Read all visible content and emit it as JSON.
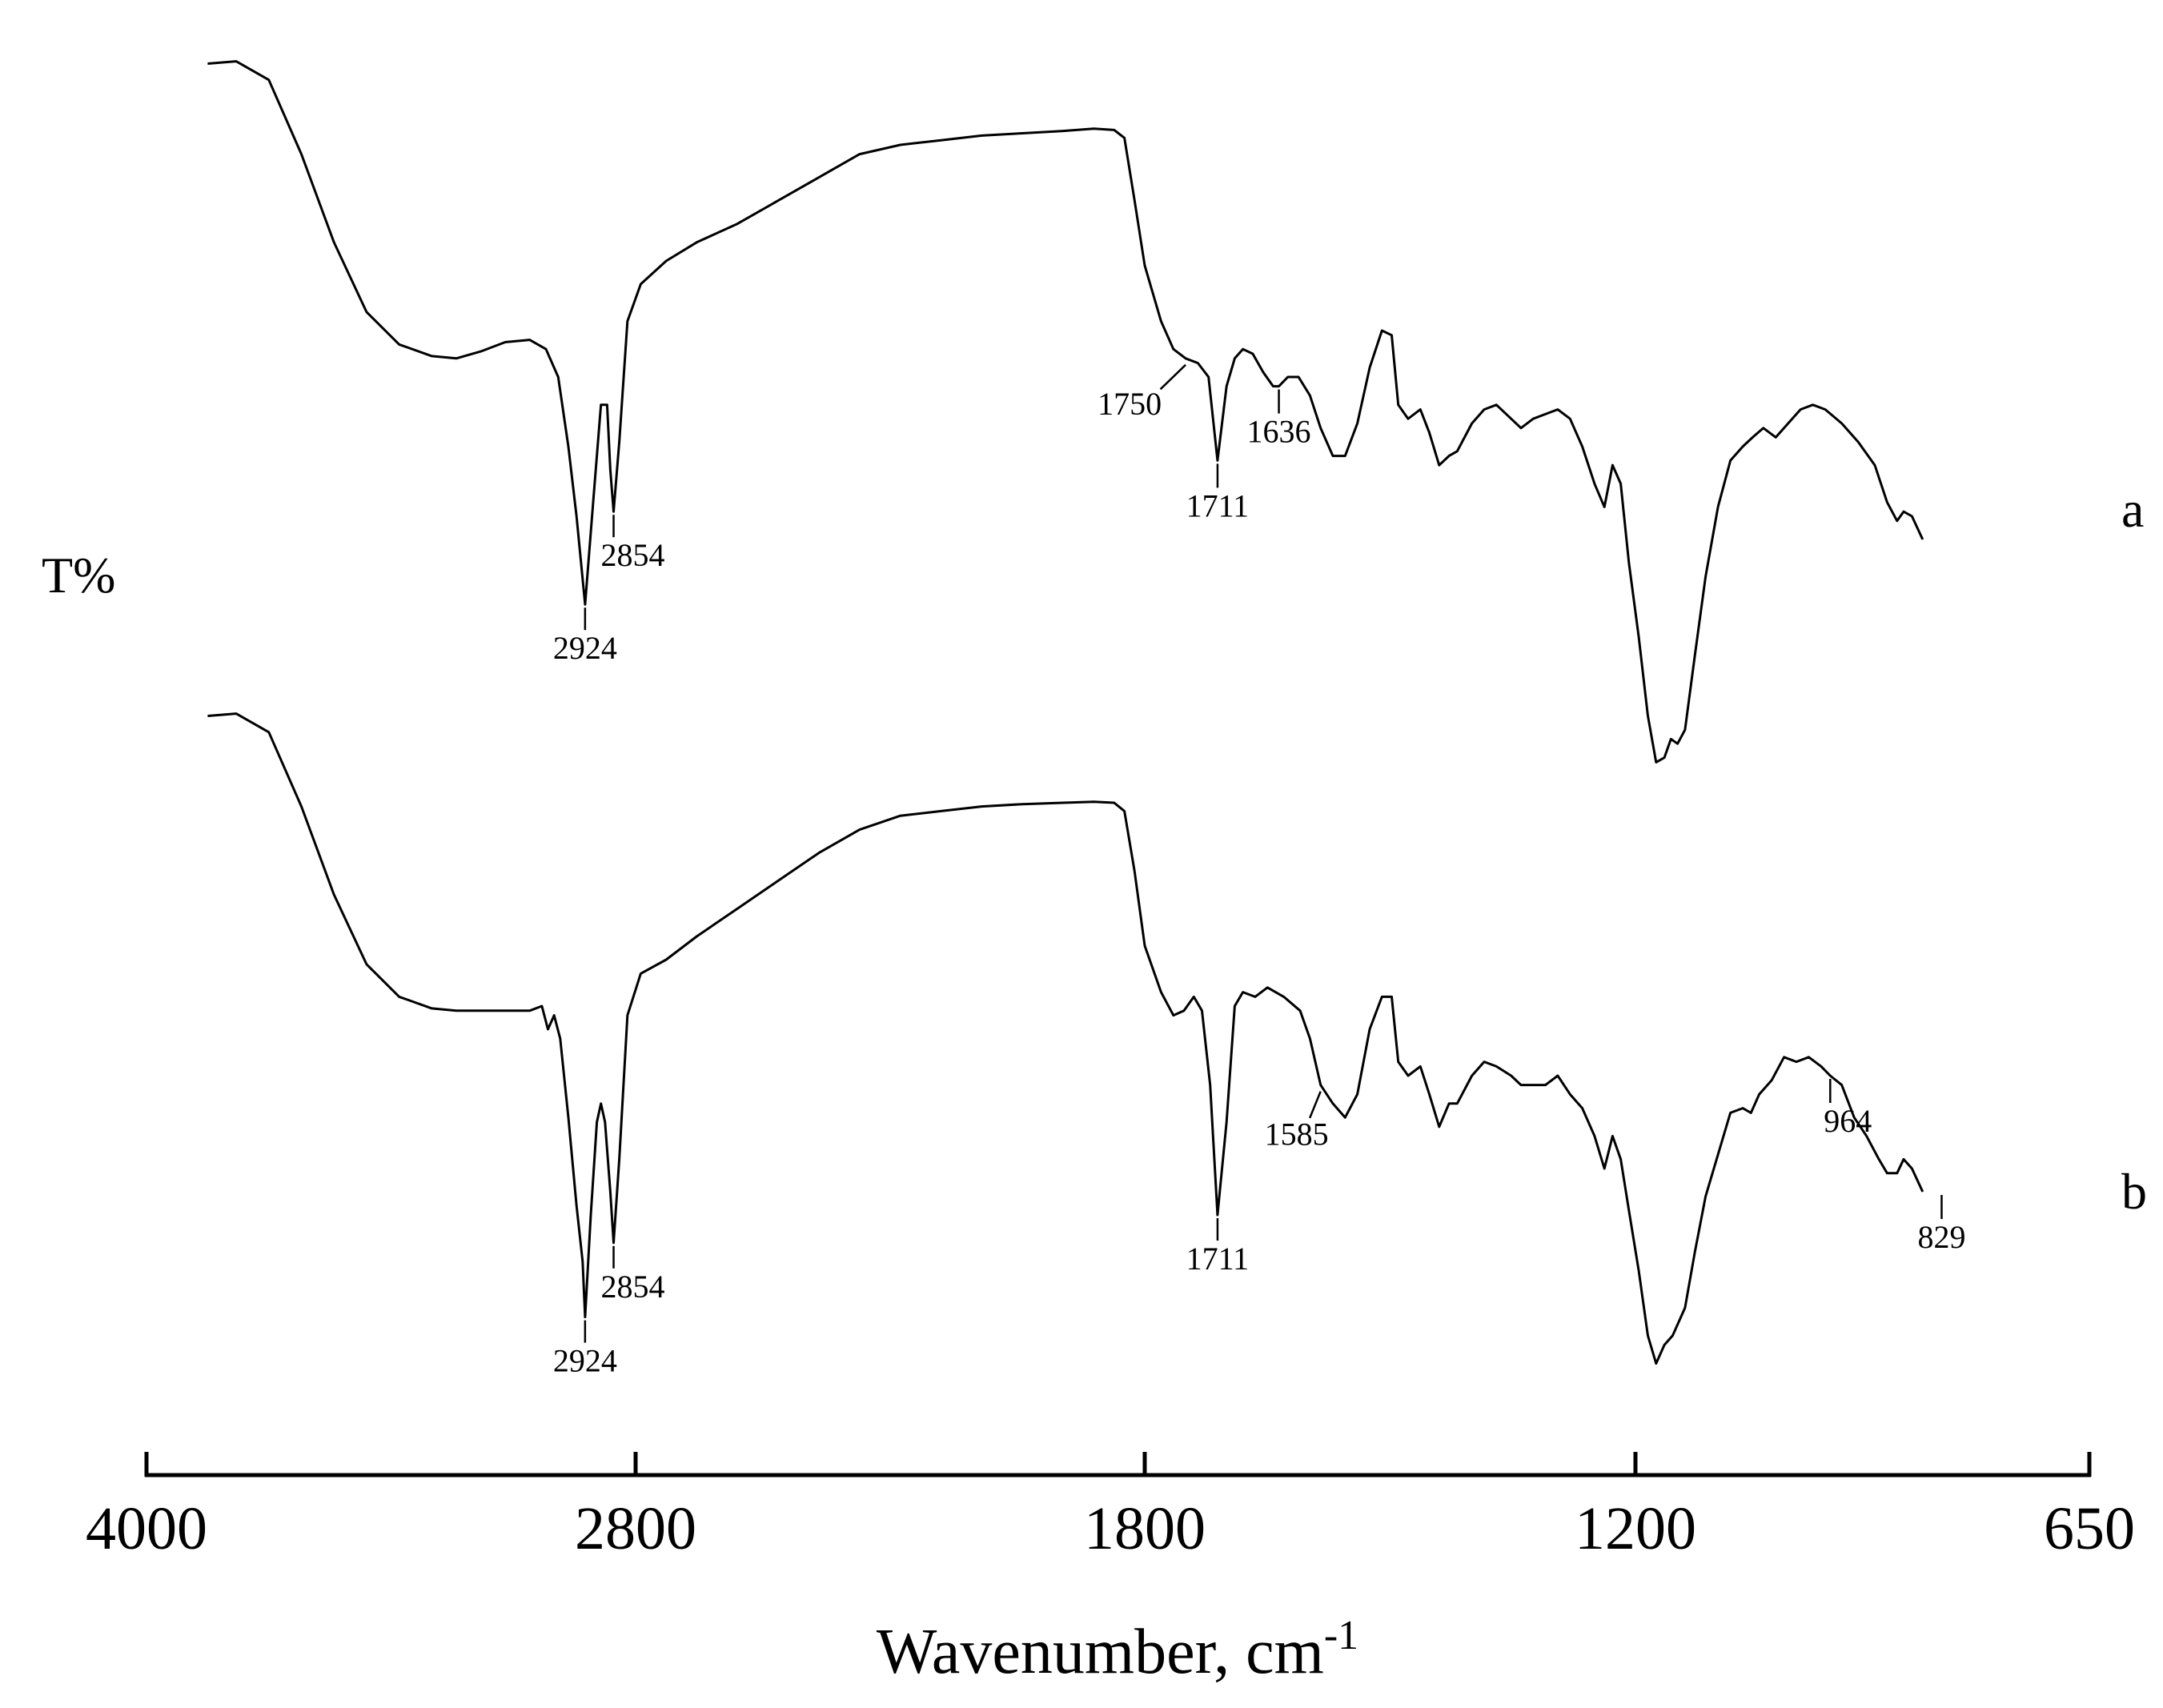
{
  "chart_data": {
    "type": "line",
    "ylabel": "T%",
    "xlabel_main": "Wavenumber, cm",
    "xlabel_sup": "-1",
    "x_ticks": [
      {
        "value": 4000,
        "label": "4000"
      },
      {
        "value": 2800,
        "label": "2800"
      },
      {
        "value": 1800,
        "label": "1800"
      },
      {
        "value": 1200,
        "label": "1200"
      },
      {
        "value": 650,
        "label": "650"
      }
    ],
    "series": [
      {
        "name": "a",
        "points": [
          [
            3850,
            0.025
          ],
          [
            3780,
            0.02
          ],
          [
            3700,
            0.06
          ],
          [
            3620,
            0.22
          ],
          [
            3540,
            0.41
          ],
          [
            3460,
            0.56
          ],
          [
            3380,
            0.63
          ],
          [
            3300,
            0.655
          ],
          [
            3240,
            0.66
          ],
          [
            3180,
            0.645
          ],
          [
            3120,
            0.625
          ],
          [
            3060,
            0.62
          ],
          [
            3020,
            0.64
          ],
          [
            2990,
            0.7
          ],
          [
            2965,
            0.85
          ],
          [
            2945,
            1.0
          ],
          [
            2924,
            1.19
          ],
          [
            2905,
            0.98
          ],
          [
            2885,
            0.76
          ],
          [
            2870,
            0.76
          ],
          [
            2862,
            0.9
          ],
          [
            2854,
            0.99
          ],
          [
            2840,
            0.84
          ],
          [
            2820,
            0.58
          ],
          [
            2790,
            0.5
          ],
          [
            2740,
            0.45
          ],
          [
            2680,
            0.41
          ],
          [
            2600,
            0.37
          ],
          [
            2520,
            0.32
          ],
          [
            2440,
            0.27
          ],
          [
            2360,
            0.22
          ],
          [
            2280,
            0.2
          ],
          [
            2200,
            0.19
          ],
          [
            2120,
            0.18
          ],
          [
            2040,
            0.175
          ],
          [
            1960,
            0.17
          ],
          [
            1900,
            0.165
          ],
          [
            1860,
            0.168
          ],
          [
            1840,
            0.185
          ],
          [
            1820,
            0.32
          ],
          [
            1800,
            0.46
          ],
          [
            1780,
            0.58
          ],
          [
            1765,
            0.64
          ],
          [
            1750,
            0.66
          ],
          [
            1735,
            0.67
          ],
          [
            1722,
            0.7
          ],
          [
            1711,
            0.88
          ],
          [
            1700,
            0.72
          ],
          [
            1690,
            0.66
          ],
          [
            1680,
            0.64
          ],
          [
            1668,
            0.65
          ],
          [
            1655,
            0.69
          ],
          [
            1643,
            0.72
          ],
          [
            1636,
            0.72
          ],
          [
            1625,
            0.7
          ],
          [
            1612,
            0.7
          ],
          [
            1598,
            0.74
          ],
          [
            1585,
            0.81
          ],
          [
            1570,
            0.87
          ],
          [
            1555,
            0.87
          ],
          [
            1540,
            0.8
          ],
          [
            1525,
            0.68
          ],
          [
            1510,
            0.6
          ],
          [
            1498,
            0.61
          ],
          [
            1490,
            0.76
          ],
          [
            1478,
            0.79
          ],
          [
            1463,
            0.77
          ],
          [
            1452,
            0.82
          ],
          [
            1440,
            0.89
          ],
          [
            1428,
            0.87
          ],
          [
            1418,
            0.86
          ],
          [
            1400,
            0.8
          ],
          [
            1385,
            0.77
          ],
          [
            1370,
            0.76
          ],
          [
            1352,
            0.79
          ],
          [
            1340,
            0.81
          ],
          [
            1325,
            0.79
          ],
          [
            1310,
            0.78
          ],
          [
            1295,
            0.77
          ],
          [
            1280,
            0.79
          ],
          [
            1265,
            0.85
          ],
          [
            1250,
            0.93
          ],
          [
            1238,
            0.98
          ],
          [
            1228,
            0.89
          ],
          [
            1218,
            0.93
          ],
          [
            1208,
            1.1
          ],
          [
            1196,
            1.26
          ],
          [
            1185,
            1.43
          ],
          [
            1175,
            1.53
          ],
          [
            1165,
            1.52
          ],
          [
            1157,
            1.48
          ],
          [
            1149,
            1.49
          ],
          [
            1140,
            1.46
          ],
          [
            1128,
            1.3
          ],
          [
            1115,
            1.13
          ],
          [
            1100,
            0.98
          ],
          [
            1085,
            0.88
          ],
          [
            1070,
            0.85
          ],
          [
            1058,
            0.83
          ],
          [
            1045,
            0.81
          ],
          [
            1030,
            0.83
          ],
          [
            1015,
            0.8
          ],
          [
            1000,
            0.77
          ],
          [
            985,
            0.76
          ],
          [
            970,
            0.77
          ],
          [
            950,
            0.8
          ],
          [
            930,
            0.84
          ],
          [
            910,
            0.89
          ],
          [
            895,
            0.97
          ],
          [
            883,
            1.01
          ],
          [
            875,
            0.99
          ],
          [
            865,
            1.0
          ],
          [
            852,
            1.05
          ]
        ]
      },
      {
        "name": "b",
        "points": [
          [
            3850,
            0.025
          ],
          [
            3780,
            0.02
          ],
          [
            3700,
            0.06
          ],
          [
            3620,
            0.22
          ],
          [
            3540,
            0.41
          ],
          [
            3460,
            0.56
          ],
          [
            3380,
            0.63
          ],
          [
            3300,
            0.655
          ],
          [
            3240,
            0.66
          ],
          [
            3180,
            0.66
          ],
          [
            3120,
            0.66
          ],
          [
            3060,
            0.66
          ],
          [
            3030,
            0.65
          ],
          [
            3015,
            0.7
          ],
          [
            3000,
            0.67
          ],
          [
            2985,
            0.72
          ],
          [
            2965,
            0.89
          ],
          [
            2945,
            1.08
          ],
          [
            2930,
            1.2
          ],
          [
            2924,
            1.32
          ],
          [
            2910,
            1.1
          ],
          [
            2895,
            0.9
          ],
          [
            2885,
            0.86
          ],
          [
            2875,
            0.9
          ],
          [
            2862,
            1.05
          ],
          [
            2854,
            1.16
          ],
          [
            2840,
            0.98
          ],
          [
            2820,
            0.67
          ],
          [
            2790,
            0.58
          ],
          [
            2740,
            0.55
          ],
          [
            2680,
            0.5
          ],
          [
            2600,
            0.44
          ],
          [
            2520,
            0.38
          ],
          [
            2440,
            0.32
          ],
          [
            2360,
            0.27
          ],
          [
            2280,
            0.24
          ],
          [
            2200,
            0.23
          ],
          [
            2120,
            0.22
          ],
          [
            2040,
            0.215
          ],
          [
            1960,
            0.212
          ],
          [
            1900,
            0.21
          ],
          [
            1860,
            0.212
          ],
          [
            1840,
            0.23
          ],
          [
            1820,
            0.36
          ],
          [
            1800,
            0.52
          ],
          [
            1780,
            0.62
          ],
          [
            1765,
            0.67
          ],
          [
            1752,
            0.66
          ],
          [
            1740,
            0.63
          ],
          [
            1730,
            0.66
          ],
          [
            1720,
            0.82
          ],
          [
            1711,
            1.1
          ],
          [
            1700,
            0.9
          ],
          [
            1690,
            0.65
          ],
          [
            1680,
            0.62
          ],
          [
            1665,
            0.63
          ],
          [
            1650,
            0.61
          ],
          [
            1630,
            0.63
          ],
          [
            1610,
            0.66
          ],
          [
            1598,
            0.72
          ],
          [
            1585,
            0.82
          ],
          [
            1570,
            0.86
          ],
          [
            1555,
            0.89
          ],
          [
            1540,
            0.84
          ],
          [
            1525,
            0.7
          ],
          [
            1510,
            0.63
          ],
          [
            1498,
            0.63
          ],
          [
            1490,
            0.77
          ],
          [
            1478,
            0.8
          ],
          [
            1463,
            0.78
          ],
          [
            1452,
            0.84
          ],
          [
            1440,
            0.91
          ],
          [
            1428,
            0.86
          ],
          [
            1418,
            0.86
          ],
          [
            1400,
            0.8
          ],
          [
            1385,
            0.77
          ],
          [
            1370,
            0.78
          ],
          [
            1352,
            0.8
          ],
          [
            1340,
            0.82
          ],
          [
            1325,
            0.82
          ],
          [
            1310,
            0.82
          ],
          [
            1295,
            0.8
          ],
          [
            1280,
            0.84
          ],
          [
            1265,
            0.87
          ],
          [
            1250,
            0.93
          ],
          [
            1238,
            1.0
          ],
          [
            1228,
            0.93
          ],
          [
            1218,
            0.98
          ],
          [
            1208,
            1.09
          ],
          [
            1196,
            1.22
          ],
          [
            1185,
            1.36
          ],
          [
            1175,
            1.42
          ],
          [
            1165,
            1.38
          ],
          [
            1155,
            1.36
          ],
          [
            1140,
            1.3
          ],
          [
            1128,
            1.18
          ],
          [
            1115,
            1.06
          ],
          [
            1100,
            0.97
          ],
          [
            1085,
            0.88
          ],
          [
            1070,
            0.87
          ],
          [
            1060,
            0.88
          ],
          [
            1050,
            0.84
          ],
          [
            1035,
            0.81
          ],
          [
            1020,
            0.76
          ],
          [
            1005,
            0.77
          ],
          [
            990,
            0.76
          ],
          [
            975,
            0.78
          ],
          [
            964,
            0.8
          ],
          [
            950,
            0.82
          ],
          [
            935,
            0.89
          ],
          [
            920,
            0.93
          ],
          [
            905,
            0.98
          ],
          [
            895,
            1.01
          ],
          [
            883,
            1.01
          ],
          [
            875,
            0.98
          ],
          [
            865,
            1.0
          ],
          [
            852,
            1.05
          ]
        ]
      }
    ],
    "annotations": [
      {
        "series": "a",
        "label": "2924",
        "x": 2924
      },
      {
        "series": "a",
        "label": "2854",
        "x": 2854
      },
      {
        "series": "a",
        "label": "1750",
        "x": 1750
      },
      {
        "series": "a",
        "label": "1711",
        "x": 1711
      },
      {
        "series": "a",
        "label": "1636",
        "x": 1636
      },
      {
        "series": "b",
        "label": "2924",
        "x": 2924
      },
      {
        "series": "b",
        "label": "2854",
        "x": 2854
      },
      {
        "series": "b",
        "label": "1711",
        "x": 1711
      },
      {
        "series": "b",
        "label": "1585",
        "x": 1585
      },
      {
        "series": "b",
        "label": "964",
        "x": 964
      },
      {
        "series": "b",
        "label": "829",
        "x": 829
      }
    ]
  }
}
